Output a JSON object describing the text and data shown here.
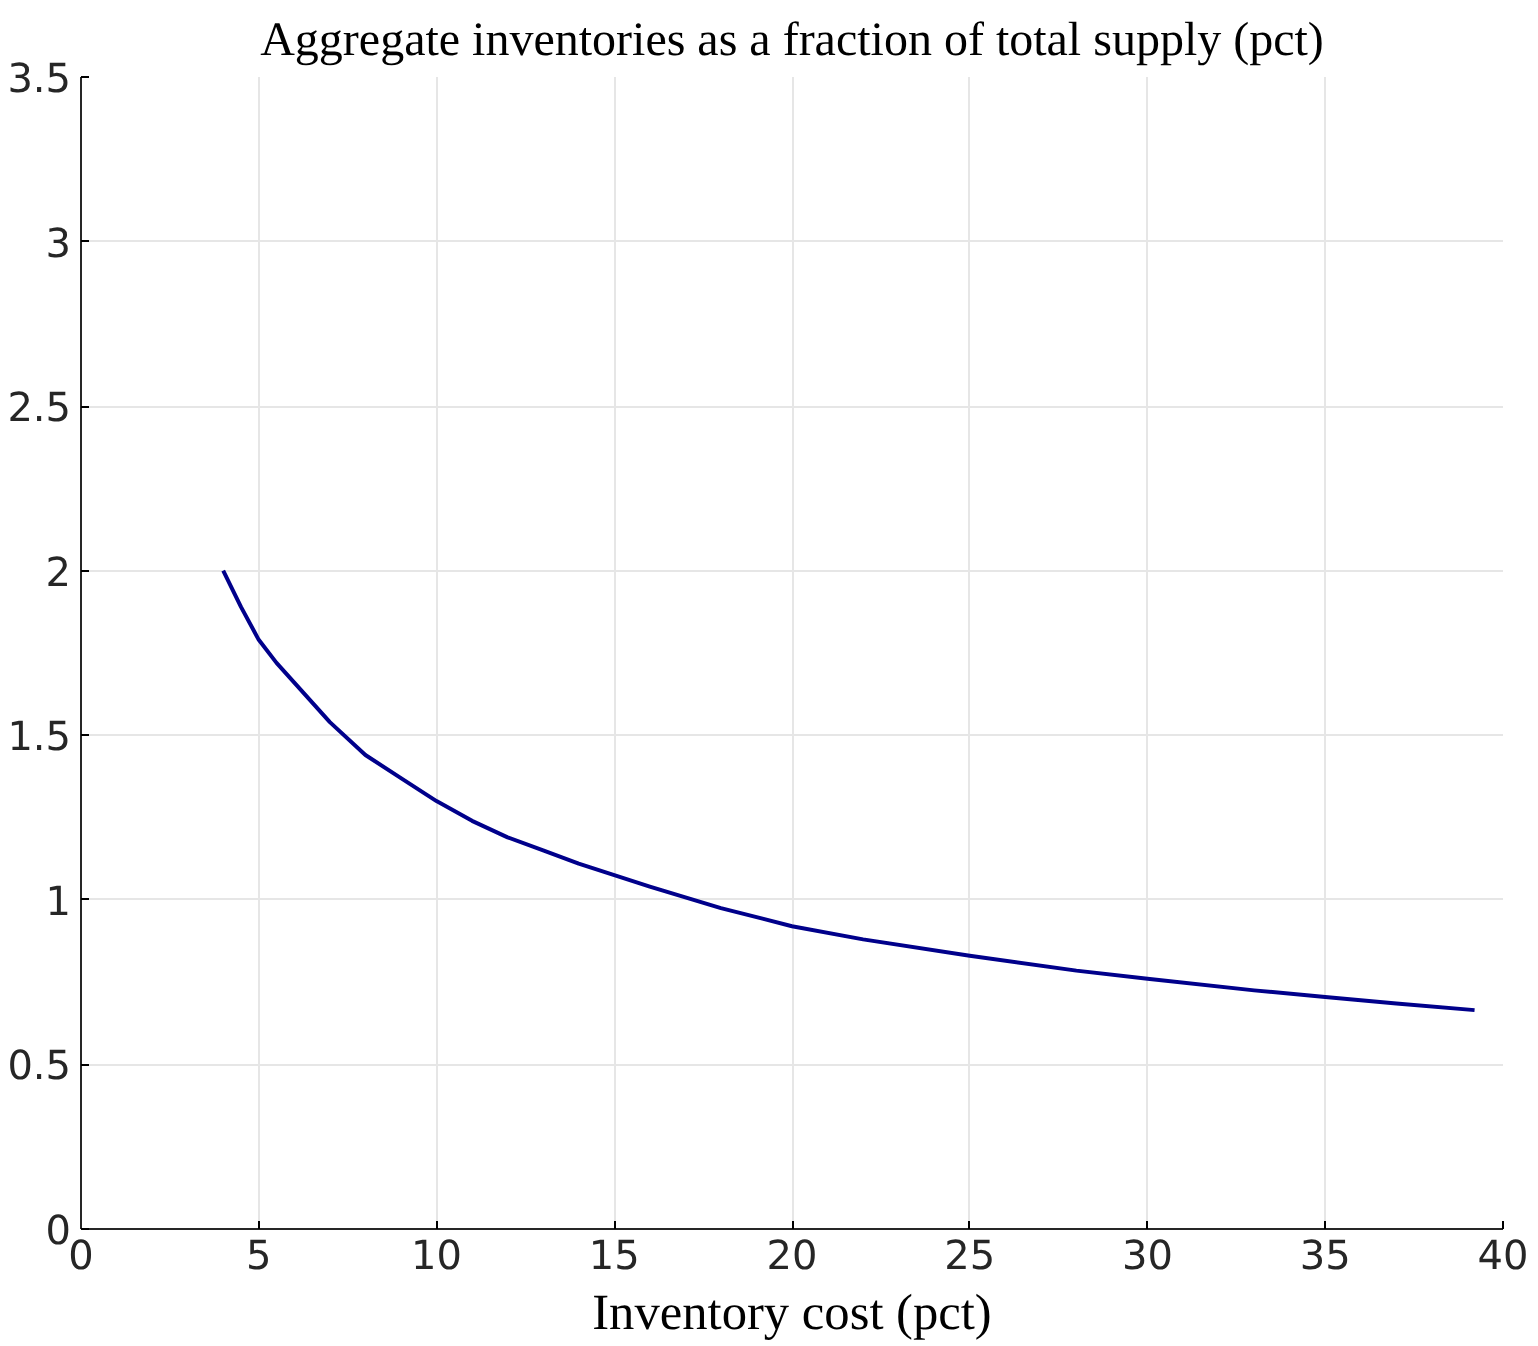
{
  "chart_data": {
    "type": "line",
    "title": "Aggregate inventories as a fraction of total supply (pct)",
    "xlabel": "Inventory cost (pct)",
    "x": [
      4,
      4.5,
      5,
      5.5,
      6,
      7,
      8,
      9,
      10,
      11,
      12,
      13,
      14,
      15,
      16,
      18,
      20,
      22,
      25,
      28,
      30,
      33,
      35,
      37,
      39.2
    ],
    "series": [
      {
        "color": "#00008b",
        "values": [
          2.0,
          1.89,
          1.79,
          1.72,
          1.66,
          1.54,
          1.44,
          1.37,
          1.3,
          1.24,
          1.19,
          1.15,
          1.11,
          1.075,
          1.04,
          0.975,
          0.92,
          0.88,
          0.83,
          0.785,
          0.76,
          0.725,
          0.705,
          0.685,
          0.665
        ]
      }
    ],
    "xlim": [
      0,
      40
    ],
    "ylim": [
      0,
      3.5
    ],
    "xticks": [
      0,
      5,
      10,
      15,
      20,
      25,
      30,
      35,
      40
    ],
    "yticks": [
      0,
      0.5,
      1,
      1.5,
      2,
      2.5,
      3,
      3.5
    ],
    "grid": true,
    "line_style": "solid"
  }
}
